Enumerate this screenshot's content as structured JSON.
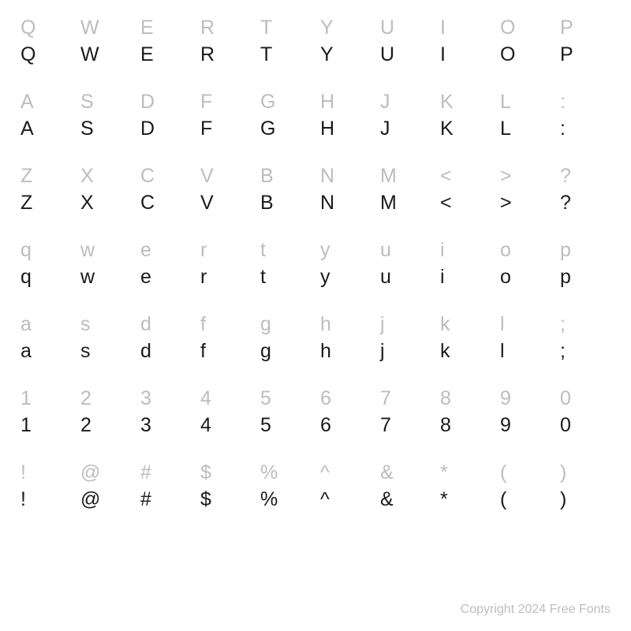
{
  "grid": {
    "columns": 10,
    "cell_fontsize": 25,
    "ghost_color": "#bdbdbd",
    "solid_color": "#1a1a1a",
    "background_color": "#ffffff",
    "rows": [
      [
        "Q",
        "W",
        "E",
        "R",
        "T",
        "Y",
        "U",
        "I",
        "O",
        "P"
      ],
      [
        "A",
        "S",
        "D",
        "F",
        "G",
        "H",
        "J",
        "K",
        "L",
        ":"
      ],
      [
        "Z",
        "X",
        "C",
        "V",
        "B",
        "N",
        "M",
        "<",
        ">",
        "?"
      ],
      [
        "q",
        "w",
        "e",
        "r",
        "t",
        "y",
        "u",
        "i",
        "o",
        "p"
      ],
      [
        "a",
        "s",
        "d",
        "f",
        "g",
        "h",
        "j",
        "k",
        "l",
        ";"
      ],
      [
        "1",
        "2",
        "3",
        "4",
        "5",
        "6",
        "7",
        "8",
        "9",
        "0"
      ],
      [
        "!",
        "@",
        "#",
        "$",
        "%",
        "^",
        "&",
        "*",
        "(",
        ")"
      ]
    ]
  },
  "copyright": "Copyright 2024 Free Fonts"
}
